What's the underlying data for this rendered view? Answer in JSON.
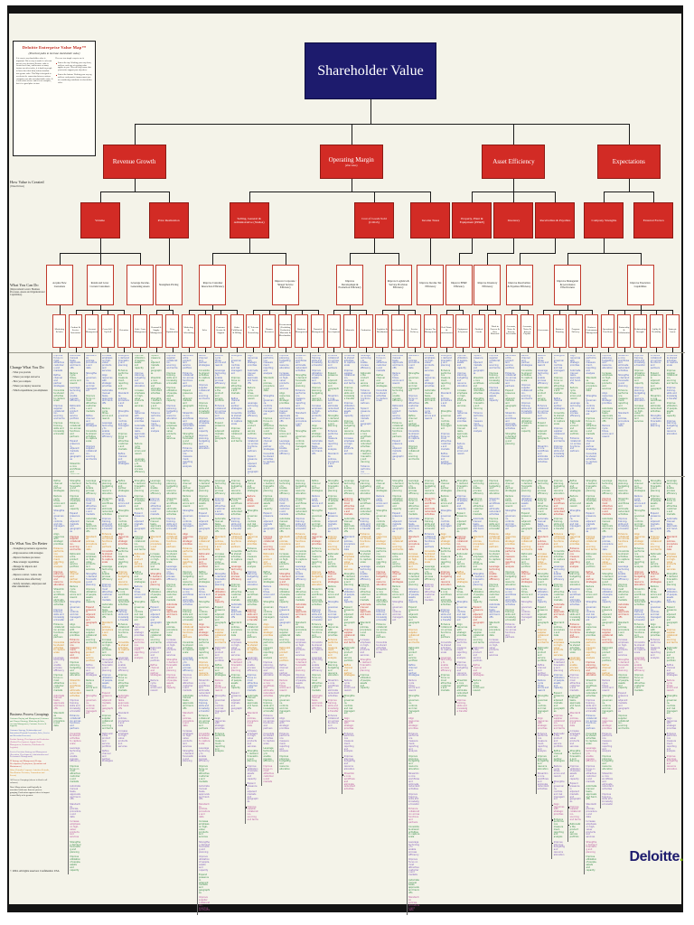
{
  "page": {
    "copyright": "© 2004. All rights reserved. Confidential. USA",
    "logo_text": "Deloitte",
    "logo_dot": "."
  },
  "legend": {
    "title": "Deloitte Enterprise Value Map™",
    "subtitle": "(Practical paths to increase shareholder value)",
    "left_para": "It is easy to say shareholder value is important. Not as easy to make it a relevant part of every decision. Because value is created over time, and because so many factors can affect value, it is hard for people to know how their daily actions translate into greater value. This Map is designed to accelerate the connection between actions companies can take and shareholder value. It is not rocket science and it is not complete, but it is a good place to start.",
    "right_lead": "Here are two simple ways to use it:",
    "bullets": [
      "Start at the top. Working your way down, ask how each way of creating value applies to you. This will help ensure that your tactics support your objectives.",
      "Start at the bottom. Working your way up, ask how each practice improvement you are considering contributes to shareholder value."
    ]
  },
  "sidebar": {
    "how": {
      "title": "How Value is Created",
      "subtitle": "(Value Drivers)"
    },
    "can": {
      "title": "What You Can Do",
      "subtitle": "(Improvement Levers: Business Processes, Assets and Organizational Capabilities)"
    },
    "change": {
      "title": "Change What You Do",
      "bullets": [
        "What you provide",
        "Where you target and serve",
        "How you compete",
        "Where you deploy resources",
        "Which expenditures you emphasize"
      ]
    },
    "better": {
      "title": "Do What You Do Better",
      "bullets": [
        "Strengthen governance approaches",
        "Align resources with strategies",
        "Improve business processes",
        "Hone strategic capabilities",
        "Manage for impacts and opportunities",
        "Improve control / reduce risk",
        "Collaborate more effectively",
        "Satisfy customers, employees and other stakeholders"
      ]
    },
    "bpg": {
      "title": "Business Process Groupings",
      "entries": [
        {
          "c": "g",
          "t": "Customer Buying and Management (Customer and Channel Strategy, Marketing & Sales, Account Management, Customer Service & Support)"
        },
        {
          "c": "b",
          "t": "Customer Strategy, Relationships and Interaction (Demand Generation, Sales, Service and Retention Processes)"
        },
        {
          "c": "m",
          "t": "Product Strategy, Development and Production (Product Development, Supply Chain Management, Production, Distribution & Logistics)"
        },
        {
          "c": "p",
          "t": "Service Provision Strategy and Management (Execution, Development, Administration and Performance Management)"
        },
        {
          "c": "r",
          "t": "IT Strategy and Management (Design, Development, Deployment, Operations and Maintenance)"
        },
        {
          "c": "o",
          "t": "Other (Periodic) Corporate Activities (Periodic, Non-Routine Decisions, Transactions and Events)"
        },
        {
          "c": "k",
          "t": "All Process Groupings (shown in black in all columns)"
        }
      ],
      "note": "Note: Many actions could logically be associated with more than one process grouping. Each action appears where its impact is most likely to be greatest."
    }
  },
  "colors": {
    "b": "#4a5fc4",
    "g": "#338a46",
    "r": "#c63430",
    "o": "#d4861c",
    "p": "#7e58b8",
    "m": "#b8539d",
    "k": "#3a3a3a",
    "node_red": "#d22b25",
    "navy": "#1d1b6d",
    "ivory": "#f4f3e9",
    "logo_green": "#7ab800"
  },
  "tree": {
    "root": {
      "label": "Shareholder Value"
    },
    "drivers": [
      {
        "label": "Revenue Growth",
        "children": [
          {
            "label": "Volume",
            "children": [
              {
                "label": "Acquire New Customers",
                "cols": [
                  "Marketing & Sales"
                ]
              },
              {
                "label": "Retain and Grow Current Customers",
                "cols": [
                  "Product & Service Innovation",
                  "Account Management",
                  "Cross-Sell / Up-Sell",
                  "Retention"
                ]
              },
              {
                "label": "Leverage Income-Generating Assets",
                "cols": [
                  "Cash / Asset Management"
                ]
              }
            ]
          },
          {
            "label": "Price Realization",
            "children": [
              {
                "label": "Strengthen Pricing",
                "cols": [
                  "Demand & Supply Management",
                  "Price Optimization"
                ]
              }
            ]
          }
        ]
      },
      {
        "label": "Operating Margin",
        "sub": "(after taxes)",
        "children": [
          {
            "label": "Selling, General & Administrative (SG&A)",
            "children": [
              {
                "label": "Improve Customer Interaction Efficiency",
                "cols": [
                  "Marketing & Advertising",
                  "Sales",
                  "Customer Service & Support",
                  "Order Fulfillment & Billing"
                ]
              },
              {
                "label": "Improve Corporate / Shared Service Efficiency",
                "cols": [
                  "IT, Telecom & Networking",
                  "Human Resources",
                  "Procurement (Excluding Production Materials & Merchandise)",
                  "Business Management",
                  "Financial Management"
                ]
              }
            ]
          },
          {
            "label": "Cost of Goods Sold (COGS)",
            "children": [
              {
                "label": "Improve Development & Production Efficiency",
                "cols": [
                  "Product Development",
                  "Materials",
                  "Production"
                ]
              },
              {
                "label": "Improve Logistics & Service Provision Efficiency",
                "cols": [
                  "Logistics & Distribution",
                  "Merchandising",
                  "Service Delivery"
                ]
              }
            ]
          },
          {
            "label": "Income Taxes",
            "children": [
              {
                "label": "Improve Income Tax Efficiency",
                "cols": [
                  "Income Tax Management"
                ]
              }
            ]
          }
        ]
      },
      {
        "label": "Asset Efficiency",
        "children": [
          {
            "label": "Property, Plant & Equipment (PP&E)",
            "children": [
              {
                "label": "Improve PP&E Efficiency",
                "cols": [
                  "Real Estate & Infrastructure",
                  "Equipment & Systems"
                ]
              }
            ]
          },
          {
            "label": "Inventory",
            "children": [
              {
                "label": "Improve Inventory Efficiency",
                "cols": [
                  "Finished Goods",
                  "Work in Process & Raw Materials"
                ]
              }
            ]
          },
          {
            "label": "Receivables & Payables",
            "children": [
              {
                "label": "Improve Receivables & Payables Efficiency",
                "cols": [
                  "Accounts, Notes & Interest Receivable",
                  "Accounts, Notes & Interest Payable"
                ]
              }
            ]
          }
        ]
      },
      {
        "label": "Expectations",
        "children": [
          {
            "label": "Company Strengths",
            "children": [
              {
                "label": "Improve Managerial & Governance Effectiveness",
                "cols": [
                  "Governance",
                  "Business Planning",
                  "Program Delivery",
                  "Business Performance Management"
                ]
              },
              {
                "label": "Improve Execution Capabilities",
                "cols": [
                  "Operational Excellence",
                  "Partnership & Collaboration",
                  "Relationship Strength",
                  "Agility & Flexibility",
                  "Strategic Assets"
                ]
              }
            ]
          },
          {
            "label": "External Factors",
            "children": []
          }
        ]
      }
    ]
  },
  "grid": {
    "phrases": [
      "Improve focus on most attractive customers and markets",
      "Increase emphasis on high-value products and services",
      "Expand presence in adjacent markets and geographies",
      "Refine channel and partner strategies",
      "Align resources with strategic priorities",
      "Streamline core workflows and eliminate redundant activities",
      "Consolidate shared activities to capture scale",
      "Automate manual tasks, approvals and hand-offs",
      "Strengthen demand forecasting and planning",
      "Improve supplier collaboration, sourcing and terms",
      "Reduce cycle times, errors and rework",
      "Enhance performance measurement, reporting and analysis",
      "Improve training, skills and knowledge transfer",
      "Leverage technology to enable process efficiency",
      "Standardize policies, procedures and data",
      "Improve utilization of people, assets and capacity",
      "Rationalize the product and service portfolio",
      "Strengthen governance, controls and risk management",
      "Improve planning, budgeting and resource allocation",
      "Enhance collaboration across functions and partners"
    ],
    "columns": [
      {
        "b1": "bbgbg",
        "b2": "ggbgorgbgopgmg"
      },
      {
        "b1": "bgbbgbg",
        "b2": "ggbrgogbgrgopbmpgppmgg"
      },
      {
        "b1": "bbgbgb",
        "b2": "gbgogbgrgopgm"
      },
      {
        "b1": "bbbgb",
        "b2": "ggborgbgogpbmgpp"
      },
      {
        "b1": "bgbbgb",
        "b2": "gbgrgogbgopgmpp"
      },
      {
        "b1": "gbgbbgg",
        "b2": "ggbgogbgpm"
      },
      {
        "b1": "gggb",
        "b2": "gbgogrgbgpmp"
      },
      {
        "b1": "bggbg",
        "b2": "ggbogbgrgpmm"
      },
      {
        "b1": "bbgbgb",
        "b2": "ggbrogbgogbpgmpp"
      },
      {
        "b1": "bgbgbb",
        "b2": "ggborgbgrgopbgmpgpmgppgm"
      },
      {
        "b1": "bbgbg",
        "b2": "gbgogbrgopgmppg"
      },
      {
        "b1": "bgbbg",
        "b2": "ggbogrgbgpmgp"
      },
      {
        "b1": "bbgbgbb",
        "b2": "grgogbgrgopbgmpgppm"
      },
      {
        "b1": "bgbgbb",
        "b2": "ggbrogbgogpmgppgm"
      },
      {
        "b1": "bbgbgb",
        "b2": "gbgogrgbgopmgppg"
      },
      {
        "b1": "bgbbg",
        "b2": "ggbogbgrgpmp"
      },
      {
        "b1": "bbgbgb",
        "b2": "gbgrgogbgppgm"
      },
      {
        "b1": "bgbgbb",
        "b2": "ggbogrgbgogpmp"
      },
      {
        "b1": "bbgbgb",
        "b2": "grgbogbgrgopgmppm"
      },
      {
        "b1": "bgbbggb",
        "b2": "ggbogbgrgpmg"
      },
      {
        "b1": "bgb",
        "b2": "gbgogrgbgp"
      },
      {
        "b1": "bbgbgb",
        "b2": "ggbogrgp"
      },
      {
        "b1": "bgbgbg",
        "b2": "ggbrogbgogbpgmpgppmgppgm"
      },
      {
        "b1": "bbgb",
        "b2": "grgbogp"
      },
      {
        "b1": "bgbgbb",
        "b2": "ggbogrgbgpmg"
      },
      {
        "b1": "bbgbgb",
        "b2": "gbgrgogbgppgm"
      },
      {
        "b1": "bggb",
        "b2": "ggbogbgrgpmg"
      },
      {
        "b1": "bgb",
        "b2": "gbgogrgbgp"
      },
      {
        "b1": "bbgbg",
        "b2": "ggborgbgp"
      },
      {
        "b1": "bgbbg",
        "b2": "gbgogrgp"
      },
      {
        "b1": "bbgbgb",
        "b2": "ggbrogbgogpbgmpgp"
      },
      {
        "b1": "bgbgbb",
        "b2": "grgogbgrgopbgmpgppmgp"
      },
      {
        "b1": "bbgbgb",
        "b2": "ggborgbgrgopgmpgppmg"
      },
      {
        "b1": "bgbgbb",
        "b2": "ggbogrgbgorgpbgmpgppmg"
      },
      {
        "b1": "bgbgb",
        "b2": "grgbogbgrgopgmpgpp"
      },
      {
        "b1": "bbgb",
        "b2": "ggbogbgrgpmgpg"
      },
      {
        "b1": "bgbg",
        "b2": "gbgogrgbgpmg"
      },
      {
        "b1": "bggb",
        "b2": "ggbogrgbgp"
      },
      {
        "b1": "bgbgb",
        "b2": "ggbrogbgogpmgppm"
      }
    ]
  }
}
